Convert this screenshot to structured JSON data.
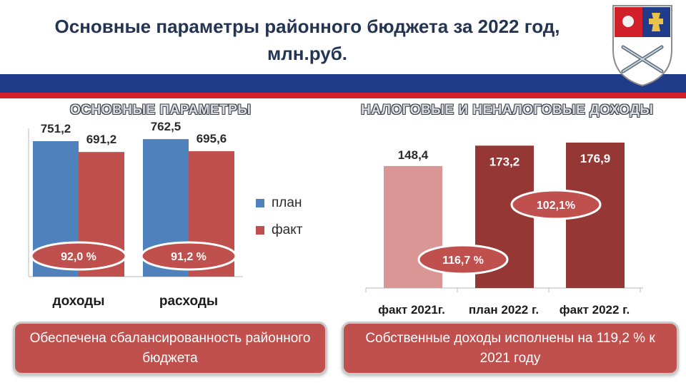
{
  "header": {
    "title_line1": "Основные параметры районного бюджета за 2022 год,",
    "title_line2": "млн.руб."
  },
  "colors": {
    "navy": "#1f3b8a",
    "red_stripe": "#d2202a",
    "plan_bar": "#4f81bd",
    "fact_bar": "#c0504d",
    "dark_red_bar": "#953735",
    "light_red_bar": "#d99694"
  },
  "crest_icon": "coat-of-arms-icon",
  "left_panel": {
    "title": "ОСНОВНЫЕ ПАРАМЕТРЫ",
    "legend": {
      "plan": "план",
      "fact": "факт"
    }
  },
  "right_panel": {
    "title": "НАЛОГОВЫЕ И НЕНАЛОГОВЫЕ ДОХОДЫ"
  },
  "chart_data": [
    {
      "type": "bar",
      "categories": [
        "доходы",
        "расходы"
      ],
      "series": [
        {
          "name": "план",
          "values": [
            751.2,
            762.5
          ],
          "color": "#4f81bd"
        },
        {
          "name": "факт",
          "values": [
            691.2,
            695.6
          ],
          "color": "#c0504d"
        }
      ],
      "data_labels": {
        "план": [
          "751,2",
          "762,5"
        ],
        "факт": [
          "691,2",
          "695,6"
        ]
      },
      "annotations": [
        "92,0 %",
        "91,2 %"
      ],
      "legend": "right",
      "ylim": [
        0,
        800
      ],
      "grid": false
    },
    {
      "type": "bar",
      "categories": [
        "факт 2021г.",
        "план 2022 г.",
        "факт 2022 г."
      ],
      "values": [
        148.4,
        173.2,
        176.9
      ],
      "data_labels": [
        "148,4",
        "173,2",
        "176,9"
      ],
      "colors": [
        "#d99694",
        "#953735",
        "#953735"
      ],
      "annotations": [
        "116,7 %",
        "102,1%"
      ],
      "ylim": [
        0,
        180
      ],
      "grid": false
    }
  ],
  "footer": {
    "left_text": "Обеспечена сбалансированность районного бюджета",
    "right_text": "Собственные доходы исполнены на 119,2 % к 2021 году"
  }
}
